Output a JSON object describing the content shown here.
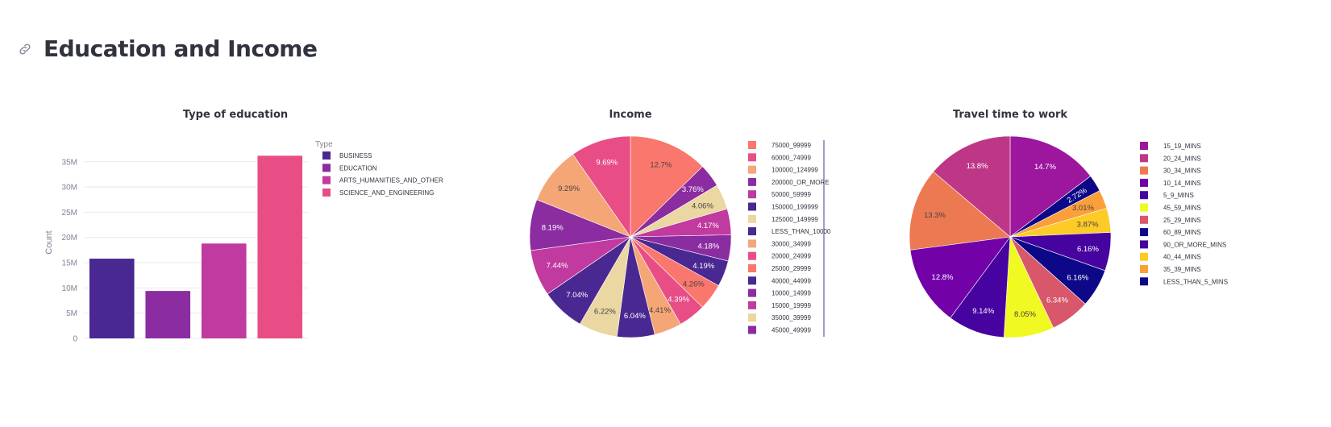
{
  "page": {
    "title": "Education and Income"
  },
  "icons": {
    "anchor": "link-icon"
  },
  "colors": {
    "plasma": [
      "#0d0887",
      "#46039f",
      "#7201a8",
      "#9c179e",
      "#bd3786",
      "#d8576b",
      "#ed7953",
      "#fb9f3a",
      "#fdca26",
      "#f0f921"
    ],
    "bars": [
      "#4a2891",
      "#8b2ca1",
      "#c13a9f",
      "#e84d86"
    ]
  },
  "chart_data": [
    {
      "type": "bar",
      "title": "Type of education",
      "xlabel": "",
      "ylabel": "Count",
      "ylim": [
        0,
        38000000
      ],
      "yticks": [
        0,
        5000000,
        10000000,
        15000000,
        20000000,
        25000000,
        30000000,
        35000000
      ],
      "ytick_labels": [
        "0",
        "5M",
        "10M",
        "15M",
        "20M",
        "25M",
        "30M",
        "35M"
      ],
      "grid": true,
      "legend_title": "Type",
      "legend_position": "right",
      "categories": [
        "BUSINESS",
        "EDUCATION",
        "ARTS_HUMANITIES_AND_OTHER",
        "SCIENCE_AND_ENGINEERING"
      ],
      "values": [
        15800000,
        9400000,
        18800000,
        36200000
      ],
      "colors": [
        "#4a2891",
        "#8b2ca1",
        "#c13a9f",
        "#e84d86"
      ]
    },
    {
      "type": "pie",
      "title": "Income",
      "legend_position": "right",
      "slices": [
        {
          "label": "75000_99999",
          "value": 12.7,
          "color": "#f9776c"
        },
        {
          "label": "45000_49999",
          "value": 3.76,
          "color": "#8b2ca1"
        },
        {
          "label": "35000_39999",
          "value": 4.06,
          "color": "#ead7a1"
        },
        {
          "label": "15000_19999",
          "value": 4.17,
          "color": "#c13a9f"
        },
        {
          "label": "10000_14999",
          "value": 4.18,
          "color": "#8b2ca1"
        },
        {
          "label": "40000_44999",
          "value": 4.19,
          "color": "#4a2891"
        },
        {
          "label": "25000_29999",
          "value": 4.26,
          "color": "#f9776c"
        },
        {
          "label": "20000_24999",
          "value": 4.39,
          "color": "#e84d86"
        },
        {
          "label": "30000_34999",
          "value": 4.41,
          "color": "#f5a676"
        },
        {
          "label": "LESS_THAN_10000",
          "value": 6.04,
          "color": "#4a2891"
        },
        {
          "label": "125000_149999",
          "value": 6.22,
          "color": "#ead7a1"
        },
        {
          "label": "150000_199999",
          "value": 7.04,
          "color": "#4a2891"
        },
        {
          "label": "50000_59999",
          "value": 7.44,
          "color": "#c13a9f"
        },
        {
          "label": "200000_OR_MORE",
          "value": 8.19,
          "color": "#8b2ca1"
        },
        {
          "label": "100000_124999",
          "value": 9.29,
          "color": "#f5a676"
        },
        {
          "label": "60000_74999",
          "value": 9.69,
          "color": "#e84d86"
        }
      ],
      "legend_order": [
        "75000_99999",
        "60000_74999",
        "100000_124999",
        "200000_OR_MORE",
        "50000_59999",
        "150000_199999",
        "125000_149999",
        "LESS_THAN_10000",
        "30000_34999",
        "20000_24999",
        "25000_29999",
        "40000_44999",
        "10000_14999",
        "15000_19999",
        "35000_39999",
        "45000_49999"
      ]
    },
    {
      "type": "pie",
      "title": "Travel time to work",
      "legend_position": "right",
      "slices": [
        {
          "label": "15_19_MINS",
          "value": 14.7,
          "color": "#9c179e"
        },
        {
          "label": "LESS_THAN_5_MINS",
          "value": 2.72,
          "color": "#0d0887"
        },
        {
          "label": "35_39_MINS",
          "value": 3.01,
          "color": "#fb9f3a"
        },
        {
          "label": "40_44_MINS",
          "value": 3.87,
          "color": "#fdca26"
        },
        {
          "label": "90_OR_MORE_MINS",
          "value": 6.16,
          "color": "#46039f"
        },
        {
          "label": "60_89_MINS",
          "value": 6.16,
          "color": "#0d0887"
        },
        {
          "label": "25_29_MINS",
          "value": 6.34,
          "color": "#d8576b"
        },
        {
          "label": "45_59_MINS",
          "value": 8.05,
          "color": "#f0f921"
        },
        {
          "label": "5_9_MINS",
          "value": 9.14,
          "color": "#46039f"
        },
        {
          "label": "10_14_MINS",
          "value": 12.8,
          "color": "#7201a8"
        },
        {
          "label": "30_34_MINS",
          "value": 13.3,
          "color": "#ed7953"
        },
        {
          "label": "20_24_MINS",
          "value": 13.8,
          "color": "#bd3786"
        }
      ],
      "legend_order": [
        "15_19_MINS",
        "20_24_MINS",
        "30_34_MINS",
        "10_14_MINS",
        "5_9_MINS",
        "45_59_MINS",
        "25_29_MINS",
        "60_89_MINS",
        "90_OR_MORE_MINS",
        "40_44_MINS",
        "35_39_MINS",
        "LESS_THAN_5_MINS"
      ]
    }
  ]
}
